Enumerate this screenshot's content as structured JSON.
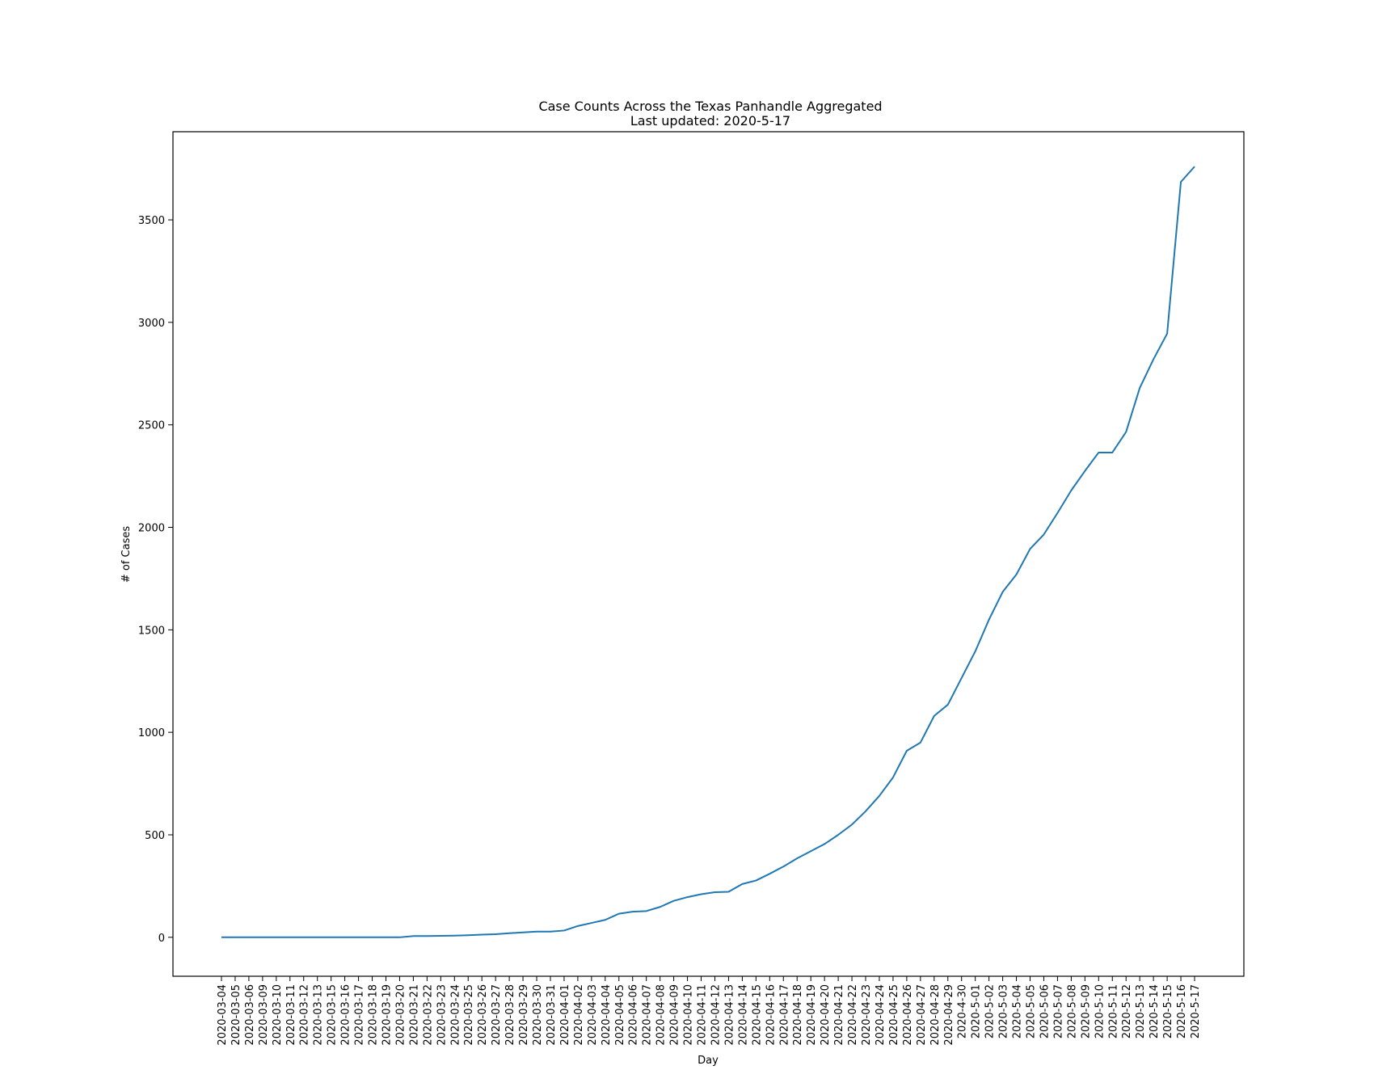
{
  "chart_data": {
    "type": "line",
    "title": "Case Counts Across the Texas Panhandle Aggregated",
    "subtitle": "Last updated: 2020-5-17",
    "xlabel": "Day",
    "ylabel": "# of Cases",
    "ylim": [
      -190,
      3930
    ],
    "yticks": [
      0,
      500,
      1000,
      1500,
      2000,
      2500,
      3000,
      3500
    ],
    "grid": false,
    "line_color": "#1f77b4",
    "categories": [
      "2020-03-04",
      "2020-03-05",
      "2020-03-06",
      "2020-03-09",
      "2020-03-10",
      "2020-03-11",
      "2020-03-12",
      "2020-03-13",
      "2020-03-15",
      "2020-03-16",
      "2020-03-17",
      "2020-03-18",
      "2020-03-19",
      "2020-03-20",
      "2020-03-21",
      "2020-03-22",
      "2020-03-23",
      "2020-03-24",
      "2020-03-25",
      "2020-03-26",
      "2020-03-27",
      "2020-03-28",
      "2020-03-29",
      "2020-03-30",
      "2020-03-31",
      "2020-04-01",
      "2020-04-02",
      "2020-04-03",
      "2020-04-04",
      "2020-04-05",
      "2020-04-06",
      "2020-04-07",
      "2020-04-08",
      "2020-04-09",
      "2020-04-10",
      "2020-04-11",
      "2020-04-12",
      "2020-04-13",
      "2020-04-14",
      "2020-04-15",
      "2020-04-16",
      "2020-04-17",
      "2020-04-18",
      "2020-04-19",
      "2020-04-20",
      "2020-04-21",
      "2020-04-22",
      "2020-04-23",
      "2020-04-24",
      "2020-04-25",
      "2020-04-26",
      "2020-04-27",
      "2020-04-28",
      "2020-04-29",
      "2020-4-30",
      "2020-5-01",
      "2020-5-02",
      "2020-5-03",
      "2020-5-04",
      "2020-5-05",
      "2020-5-06",
      "2020-5-07",
      "2020-5-08",
      "2020-5-09",
      "2020-5-10",
      "2020-5-11",
      "2020-5-12",
      "2020-5-13",
      "2020-5-14",
      "2020-5-15",
      "2020-5-16",
      "2020-5-17"
    ],
    "values": [
      0,
      0,
      0,
      0,
      0,
      0,
      0,
      0,
      0,
      0,
      0,
      0,
      0,
      0,
      6,
      6,
      7,
      8,
      10,
      13,
      15,
      20,
      24,
      28,
      28,
      33,
      55,
      70,
      85,
      115,
      125,
      128,
      148,
      178,
      196,
      210,
      220,
      222,
      260,
      277,
      310,
      345,
      385,
      420,
      455,
      500,
      550,
      615,
      690,
      780,
      910,
      950,
      1080,
      1135,
      1265,
      1395,
      1550,
      1685,
      1770,
      1895,
      1965,
      2070,
      2180,
      2275,
      2365,
      2365,
      2465,
      2680,
      2820,
      2945,
      3685,
      3760
    ]
  }
}
